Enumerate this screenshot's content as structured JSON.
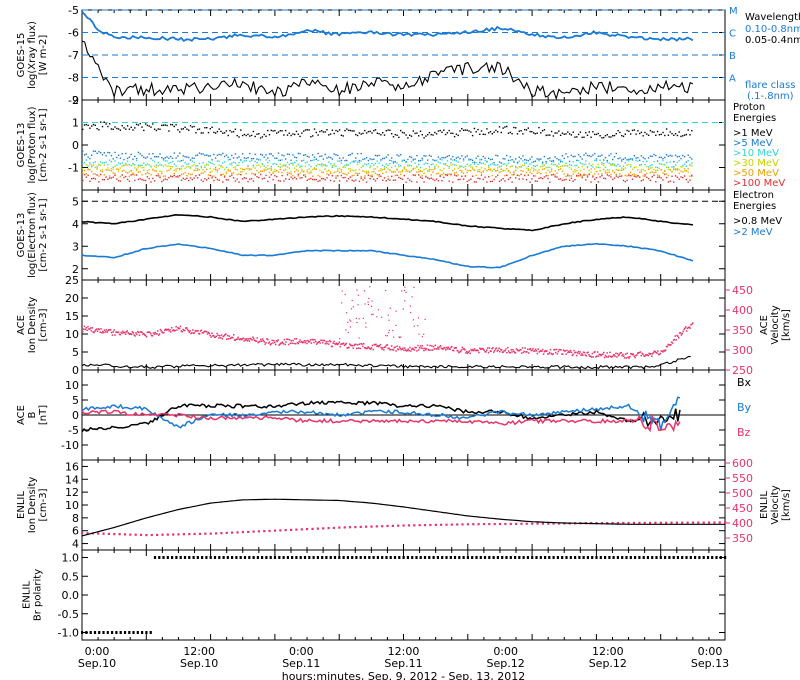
{
  "xaxis": {
    "ticks": [
      {
        "time": "0:00",
        "date": "Sep.10"
      },
      {
        "time": "12:00",
        "date": "Sep.10"
      },
      {
        "time": "0:00",
        "date": "Sep.11"
      },
      {
        "time": "12:00",
        "date": "Sep.11"
      },
      {
        "time": "0:00",
        "date": "Sep.12"
      },
      {
        "time": "12:00",
        "date": "Sep.12"
      },
      {
        "time": "0:00",
        "date": "Sep.13"
      }
    ],
    "label": "hours:minutes, Sep.  9, 2012 - Sep. 13, 2012"
  },
  "colors": {
    "black": "#000000",
    "blue": "#1a7ad4",
    "cyan": "#2fd6d6",
    "pink": "#e8336a"
  },
  "chart_data": [
    {
      "type": "line",
      "id": "xray",
      "ylabel": [
        "GOES-15",
        "log(Xray flux)",
        "[W m-2]"
      ],
      "ylim": [
        -9,
        -5
      ],
      "yticks": [
        "-5",
        "-6",
        "-7",
        "-8",
        "-9"
      ],
      "flare_class_levels": [
        {
          "label": "M",
          "value": -5
        },
        {
          "label": "C",
          "value": -6
        },
        {
          "label": "B",
          "value": -7
        },
        {
          "label": "A",
          "value": -8
        }
      ],
      "legend": {
        "title": "Wavelength",
        "entries": [
          "0.10-0.8nm",
          "0.05-0.4nm"
        ],
        "footer": [
          "flare class",
          "(.1-.8nm)"
        ]
      },
      "series": [
        {
          "name": "0.10-0.8nm",
          "color": "#1a7ad4",
          "x": [
            0,
            3,
            6,
            12,
            18,
            24,
            30,
            36,
            42,
            48,
            54,
            60,
            66,
            72,
            78,
            84,
            90,
            96,
            102,
            108,
            114
          ],
          "values": [
            -5.0,
            -5.9,
            -6.2,
            -6.2,
            -6.3,
            -6.3,
            -6.1,
            -6.2,
            -5.9,
            -6.1,
            -6.0,
            -6.1,
            -6.1,
            -6.0,
            -5.8,
            -6.1,
            -6.2,
            -6.0,
            -6.2,
            -6.3,
            -6.3
          ]
        },
        {
          "name": "0.05-0.4nm",
          "color": "#000000",
          "x": [
            0,
            3,
            6,
            12,
            18,
            24,
            30,
            36,
            42,
            48,
            54,
            60,
            66,
            72,
            78,
            84,
            90,
            96,
            102,
            108,
            114
          ],
          "values": [
            -6.5,
            -7.6,
            -8.6,
            -8.5,
            -8.6,
            -8.4,
            -8.3,
            -8.7,
            -8.2,
            -8.6,
            -8.2,
            -8.5,
            -7.8,
            -7.6,
            -7.5,
            -8.6,
            -8.8,
            -8.4,
            -8.5,
            -8.4,
            -8.4
          ]
        }
      ]
    },
    {
      "type": "scatter",
      "id": "proton",
      "ylabel": [
        "GOES-13",
        "log(Proton flux)",
        "[cm-2 s-1 sr-1]"
      ],
      "ylim": [
        -2,
        2
      ],
      "yticks": [
        "2",
        "1",
        "0",
        "-1"
      ],
      "legend": {
        "title": [
          "Proton",
          "Energies"
        ],
        "entries": [
          ">1 MeV",
          ">5 MeV",
          ">10 MeV",
          ">30 MeV",
          ">50 MeV",
          ">100 MeV"
        ]
      },
      "series": [
        {
          "name": ">1 MeV",
          "color": "#000000",
          "values": [
            0.9,
            0.8,
            0.5,
            0.6,
            0.5,
            0.7,
            0.5,
            0.6
          ]
        },
        {
          "name": ">5 MeV",
          "color": "#1a7ad4",
          "values": [
            -0.4,
            -0.5,
            -0.5,
            -0.5,
            -0.6,
            -0.6,
            -0.5,
            -0.6
          ]
        },
        {
          "name": ">10 MeV",
          "color": "#2fd6d6",
          "values": [
            -0.8,
            -0.8,
            -0.8,
            -0.8,
            -0.8,
            -0.8,
            -0.8,
            -0.8
          ]
        },
        {
          "name": ">30 MeV",
          "color": "#c8d400",
          "values": [
            -1.0,
            -1.0,
            -1.0,
            -1.0,
            -1.0,
            -1.0,
            -1.0,
            -1.0
          ]
        },
        {
          "name": ">50 MeV",
          "color": "#f0a000",
          "values": [
            -1.2,
            -1.2,
            -1.2,
            -1.2,
            -1.2,
            -1.2,
            -1.2,
            -1.2
          ]
        },
        {
          "name": ">100 MeV",
          "color": "#e03030",
          "values": [
            -1.45,
            -1.45,
            -1.45,
            -1.45,
            -1.45,
            -1.45,
            -1.45,
            -1.45
          ]
        }
      ]
    },
    {
      "type": "line",
      "id": "electron",
      "ylabel": [
        "GOES-13",
        "log(Electron flux)",
        "[cm-2 s-1 sr-1]"
      ],
      "ylim": [
        1.5,
        5.5
      ],
      "yticks": [
        "5",
        "4",
        "3",
        "2"
      ],
      "legend": {
        "title": [
          "Electron",
          "Energies"
        ],
        "entries": [
          ">0.8 MeV",
          ">2 MeV"
        ]
      },
      "series": [
        {
          "name": ">0.8 MeV",
          "color": "#000000",
          "x": [
            0,
            6,
            12,
            18,
            24,
            30,
            36,
            42,
            48,
            54,
            60,
            66,
            72,
            78,
            84,
            90,
            96,
            102,
            108,
            114
          ],
          "values": [
            4.1,
            4.0,
            4.2,
            4.4,
            4.3,
            4.1,
            4.2,
            4.3,
            4.35,
            4.3,
            4.2,
            4.1,
            3.9,
            3.8,
            3.7,
            4.0,
            4.2,
            4.3,
            4.1,
            3.95
          ]
        },
        {
          "name": ">2 MeV",
          "color": "#1a7ad4",
          "x": [
            0,
            6,
            12,
            18,
            24,
            30,
            36,
            42,
            48,
            54,
            60,
            66,
            72,
            78,
            84,
            90,
            96,
            102,
            108,
            114
          ],
          "values": [
            2.6,
            2.5,
            2.9,
            3.1,
            2.9,
            2.6,
            2.6,
            2.8,
            2.8,
            2.8,
            2.6,
            2.4,
            2.1,
            2.05,
            2.6,
            3.0,
            3.1,
            3.0,
            2.8,
            2.35
          ]
        }
      ]
    },
    {
      "type": "scatter",
      "id": "ace-density",
      "ylabel": [
        "ACE",
        "Ion Density",
        "[cm-3]"
      ],
      "ylim": [
        0,
        25
      ],
      "yticks": [
        "25",
        "20",
        "15",
        "10",
        "5",
        "0"
      ],
      "right_ylabel": [
        "ACE",
        "Velocity",
        "[km/s]"
      ],
      "right_ylim": [
        250,
        475
      ],
      "right_yticks": [
        "450",
        "400",
        "350",
        "300",
        "250"
      ],
      "series": [
        {
          "name": "Ion Density",
          "color": "#000000",
          "x": [
            0,
            12,
            24,
            36,
            48,
            60,
            72,
            84,
            96,
            106,
            112,
            114
          ],
          "values": [
            1.5,
            0.8,
            1.2,
            1.5,
            1.5,
            1.0,
            1.0,
            0.8,
            0.8,
            0.8,
            3.0,
            4.0
          ]
        },
        {
          "name": "Velocity",
          "color": "#e8336a",
          "x": [
            0,
            6,
            12,
            18,
            24,
            30,
            36,
            42,
            48,
            54,
            60,
            66,
            72,
            78,
            84,
            90,
            96,
            102,
            108,
            112,
            114
          ],
          "values": [
            355,
            345,
            340,
            355,
            340,
            330,
            320,
            325,
            315,
            310,
            305,
            308,
            300,
            302,
            300,
            295,
            290,
            288,
            295,
            350,
            365
          ]
        }
      ]
    },
    {
      "type": "line",
      "id": "ace-bfield",
      "ylabel": [
        "ACE",
        "B",
        "[nT]"
      ],
      "ylim": [
        -15,
        15
      ],
      "yticks": [
        "10",
        "5",
        "0",
        "-5",
        "-10"
      ],
      "legend": {
        "entries": [
          "Bx",
          "By",
          "Bz"
        ]
      },
      "series": [
        {
          "name": "Bx",
          "color": "#000000",
          "x": [
            0,
            6,
            12,
            18,
            24,
            30,
            36,
            42,
            48,
            54,
            60,
            66,
            72,
            78,
            84,
            90,
            96,
            102,
            108,
            112
          ],
          "values": [
            -5,
            -4,
            -3,
            3,
            3,
            3,
            3,
            4,
            4,
            4,
            3,
            3,
            1,
            1,
            -1,
            0,
            1,
            -2,
            -1,
            0
          ]
        },
        {
          "name": "By",
          "color": "#1a7ad4",
          "x": [
            0,
            6,
            12,
            18,
            24,
            30,
            36,
            42,
            48,
            54,
            60,
            66,
            72,
            78,
            84,
            90,
            96,
            102,
            108,
            112
          ],
          "values": [
            2,
            3,
            2,
            -4,
            0,
            0,
            1,
            1,
            0,
            1,
            1,
            0,
            -1,
            1,
            0,
            1,
            2,
            3,
            -4,
            6
          ]
        },
        {
          "name": "Bz",
          "color": "#e8336a",
          "x": [
            0,
            6,
            12,
            18,
            24,
            30,
            36,
            42,
            48,
            54,
            60,
            66,
            72,
            78,
            84,
            90,
            96,
            102,
            108,
            112
          ],
          "values": [
            1,
            1,
            0,
            0,
            -1,
            -1,
            -1,
            -2,
            -2,
            -2,
            -2,
            -2,
            -2,
            -3,
            -2,
            -2,
            -2,
            -2,
            -3,
            -4
          ]
        }
      ]
    },
    {
      "type": "line",
      "id": "enlil",
      "ylabel": [
        "ENLIL",
        "Ion Density",
        "[cm-3]"
      ],
      "ylim": [
        3,
        17
      ],
      "yticks": [
        "16",
        "14",
        "12",
        "10",
        "8",
        "6",
        "4"
      ],
      "right_ylabel": [
        "ENLIL",
        "Velocity",
        "[km/s]"
      ],
      "right_ylim": [
        310,
        610
      ],
      "right_yticks": [
        "600",
        "550",
        "500",
        "450",
        "400",
        "350"
      ],
      "series": [
        {
          "name": "Ion Density",
          "color": "#000000",
          "x": [
            0,
            6,
            12,
            18,
            24,
            30,
            36,
            42,
            48,
            54,
            60,
            66,
            72,
            78,
            84,
            90,
            96,
            102,
            108,
            114,
            120
          ],
          "values": [
            5.2,
            6.5,
            8.0,
            9.3,
            10.3,
            10.8,
            10.9,
            10.8,
            10.7,
            10.3,
            9.7,
            9.0,
            8.3,
            7.8,
            7.4,
            7.2,
            7.1,
            7.0,
            7.0,
            7.0,
            7.0
          ]
        },
        {
          "name": "Velocity",
          "color": "#e8336a",
          "x": [
            0,
            12,
            24,
            36,
            48,
            60,
            72,
            84,
            96,
            108,
            120
          ],
          "values": [
            367,
            360,
            365,
            375,
            385,
            392,
            396,
            398,
            400,
            401,
            402
          ]
        }
      ]
    },
    {
      "type": "line",
      "id": "enlil-polarity",
      "ylabel": [
        "ENLIL",
        "Br polarity"
      ],
      "ylim": [
        -1.2,
        1.2
      ],
      "yticks": [
        "1.0",
        "0.5",
        "0.0",
        "-0.5",
        "-1.0"
      ],
      "series": [
        {
          "name": "Br polarity",
          "color": "#000000",
          "x": [
            0,
            12,
            13,
            120
          ],
          "values": [
            -1,
            -1,
            1,
            1
          ]
        }
      ]
    }
  ]
}
